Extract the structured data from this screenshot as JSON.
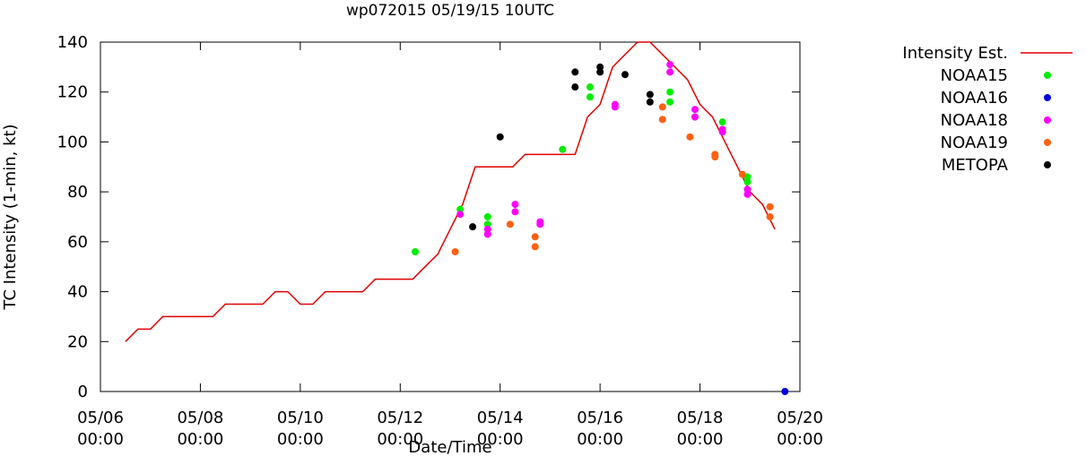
{
  "chart_data": {
    "type": "scatter",
    "title": "wp072015 05/19/15 10UTC",
    "xlabel": "Date/Time",
    "ylabel": "TC Intensity (1-min, kt)",
    "xlim": [
      "05/06 00:00",
      "05/20 00:00"
    ],
    "ylim": [
      0,
      140
    ],
    "x_ticks": [
      {
        "value": 0,
        "line1": "05/06",
        "line2": "00:00"
      },
      {
        "value": 2,
        "line1": "05/08",
        "line2": "00:00"
      },
      {
        "value": 4,
        "line1": "05/10",
        "line2": "00:00"
      },
      {
        "value": 6,
        "line1": "05/12",
        "line2": "00:00"
      },
      {
        "value": 8,
        "line1": "05/14",
        "line2": "00:00"
      },
      {
        "value": 10,
        "line1": "05/16",
        "line2": "00:00"
      },
      {
        "value": 12,
        "line1": "05/18",
        "line2": "00:00"
      },
      {
        "value": 14,
        "line1": "05/20",
        "line2": "00:00"
      }
    ],
    "y_ticks": [
      0,
      20,
      40,
      60,
      80,
      100,
      120,
      140
    ],
    "grid": false,
    "legend_position": "right",
    "series": [
      {
        "name": "Intensity Est.",
        "kind": "line",
        "color": "#e00000",
        "points": [
          [
            0.5,
            20
          ],
          [
            0.75,
            25
          ],
          [
            1.0,
            25
          ],
          [
            1.25,
            30
          ],
          [
            1.5,
            30
          ],
          [
            1.75,
            30
          ],
          [
            2.0,
            30
          ],
          [
            2.25,
            30
          ],
          [
            2.5,
            35
          ],
          [
            2.75,
            35
          ],
          [
            3.0,
            35
          ],
          [
            3.25,
            35
          ],
          [
            3.5,
            40
          ],
          [
            3.75,
            40
          ],
          [
            4.0,
            35
          ],
          [
            4.25,
            35
          ],
          [
            4.5,
            40
          ],
          [
            4.75,
            40
          ],
          [
            5.0,
            40
          ],
          [
            5.25,
            40
          ],
          [
            5.5,
            45
          ],
          [
            5.75,
            45
          ],
          [
            6.0,
            45
          ],
          [
            6.25,
            45
          ],
          [
            6.5,
            50
          ],
          [
            6.75,
            55
          ],
          [
            7.0,
            65
          ],
          [
            7.25,
            75
          ],
          [
            7.5,
            90
          ],
          [
            7.75,
            90
          ],
          [
            8.0,
            90
          ],
          [
            8.25,
            90
          ],
          [
            8.5,
            95
          ],
          [
            8.75,
            95
          ],
          [
            9.0,
            95
          ],
          [
            9.25,
            95
          ],
          [
            9.5,
            95
          ],
          [
            9.75,
            110
          ],
          [
            10.0,
            115
          ],
          [
            10.25,
            130
          ],
          [
            10.5,
            135
          ],
          [
            10.75,
            140
          ],
          [
            11.0,
            140
          ],
          [
            11.25,
            135
          ],
          [
            11.5,
            130
          ],
          [
            11.75,
            125
          ],
          [
            12.0,
            115
          ],
          [
            12.25,
            110
          ],
          [
            12.5,
            100
          ],
          [
            12.75,
            90
          ],
          [
            13.0,
            80
          ],
          [
            13.25,
            75
          ],
          [
            13.5,
            65
          ]
        ]
      },
      {
        "name": "NOAA15",
        "kind": "points",
        "color": "#00ee00",
        "points": [
          [
            6.3,
            56
          ],
          [
            7.2,
            73
          ],
          [
            7.75,
            70
          ],
          [
            7.75,
            67
          ],
          [
            9.25,
            97
          ],
          [
            9.8,
            122
          ],
          [
            9.8,
            118
          ],
          [
            11.4,
            120
          ],
          [
            11.4,
            116
          ],
          [
            11.9,
            110
          ],
          [
            12.45,
            108
          ],
          [
            12.95,
            86
          ],
          [
            12.95,
            84
          ]
        ]
      },
      {
        "name": "NOAA16",
        "kind": "points",
        "color": "#0000dd",
        "points": [
          [
            13.7,
            0
          ]
        ]
      },
      {
        "name": "NOAA18",
        "kind": "points",
        "color": "#ff00ff",
        "points": [
          [
            7.2,
            71
          ],
          [
            7.75,
            65
          ],
          [
            7.75,
            63
          ],
          [
            8.3,
            75
          ],
          [
            8.3,
            72
          ],
          [
            8.8,
            68
          ],
          [
            8.8,
            67
          ],
          [
            10.3,
            115
          ],
          [
            10.3,
            114
          ],
          [
            11.4,
            131
          ],
          [
            11.4,
            128
          ],
          [
            11.9,
            113
          ],
          [
            11.9,
            110
          ],
          [
            12.45,
            105
          ],
          [
            12.45,
            104
          ],
          [
            12.95,
            81
          ],
          [
            12.95,
            79
          ]
        ]
      },
      {
        "name": "NOAA19",
        "kind": "points",
        "color": "#ff6010",
        "points": [
          [
            7.1,
            56
          ],
          [
            8.2,
            67
          ],
          [
            8.7,
            62
          ],
          [
            8.7,
            58
          ],
          [
            11.25,
            114
          ],
          [
            11.25,
            109
          ],
          [
            11.8,
            102
          ],
          [
            12.3,
            95
          ],
          [
            12.3,
            94
          ],
          [
            12.85,
            87
          ],
          [
            13.4,
            74
          ],
          [
            13.4,
            70
          ]
        ]
      },
      {
        "name": "METOPA",
        "kind": "points",
        "color": "#000000",
        "points": [
          [
            7.45,
            66
          ],
          [
            8.0,
            102
          ],
          [
            9.5,
            128
          ],
          [
            9.5,
            122
          ],
          [
            10.0,
            130
          ],
          [
            10.0,
            128
          ],
          [
            10.5,
            127
          ],
          [
            11.0,
            119
          ],
          [
            11.0,
            116
          ]
        ]
      }
    ]
  }
}
